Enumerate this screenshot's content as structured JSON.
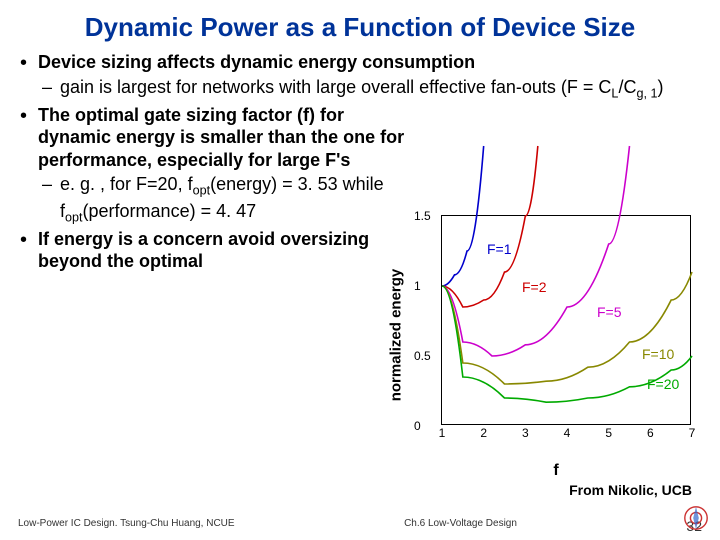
{
  "title": "Dynamic Power as a Function of Device Size",
  "bullets": {
    "b1": "Device sizing affects dynamic energy consumption",
    "b1a": "gain is largest for networks with large overall effective fan-outs (F = C",
    "b1a_sub1": "L",
    "b1a_mid": "/C",
    "b1a_sub2": "g, 1",
    "b1a_end": ")",
    "b2": "The optimal gate sizing factor (f) for dynamic energy is smaller than the one for performance, especially for large F's",
    "b2a_start": "e. g. , for F=20, f",
    "b2a_sub1": "opt",
    "b2a_mid1": "(energy) = 3. 53     while f",
    "b2a_sub2": "opt",
    "b2a_end": "(performance) = 4. 47",
    "b3": "If energy is a concern avoid oversizing beyond the optimal"
  },
  "chart": {
    "ylabel": "normalized energy",
    "xlabel": "f",
    "xlim": [
      1,
      7
    ],
    "ylim": [
      0,
      1.5
    ],
    "xticks": [
      1,
      2,
      3,
      4,
      5,
      6,
      7
    ],
    "yticks": [
      0,
      0.5,
      1,
      1.5
    ],
    "curves": [
      {
        "label": "F=1",
        "color": "#0000cc",
        "label_x": 0.18,
        "label_y": 0.12,
        "pts": [
          [
            1,
            1
          ],
          [
            1.3,
            1.08
          ],
          [
            1.6,
            1.25
          ],
          [
            2,
            2.0
          ]
        ]
      },
      {
        "label": "F=2",
        "color": "#cc0000",
        "label_x": 0.32,
        "label_y": 0.3,
        "pts": [
          [
            1,
            1
          ],
          [
            1.5,
            0.85
          ],
          [
            2,
            0.9
          ],
          [
            2.5,
            1.1
          ],
          [
            3,
            1.5
          ],
          [
            3.3,
            2.0
          ]
        ]
      },
      {
        "label": "F=5",
        "color": "#cc00cc",
        "label_x": 0.62,
        "label_y": 0.42,
        "pts": [
          [
            1,
            1
          ],
          [
            1.5,
            0.6
          ],
          [
            2.2,
            0.5
          ],
          [
            3,
            0.58
          ],
          [
            4,
            0.85
          ],
          [
            5,
            1.3
          ],
          [
            5.5,
            2.0
          ]
        ]
      },
      {
        "label": "F=10",
        "color": "#888800",
        "label_x": 0.8,
        "label_y": 0.62,
        "pts": [
          [
            1,
            1
          ],
          [
            1.5,
            0.45
          ],
          [
            2.5,
            0.3
          ],
          [
            3.5,
            0.32
          ],
          [
            4.5,
            0.42
          ],
          [
            5.5,
            0.6
          ],
          [
            6.5,
            0.9
          ],
          [
            7,
            1.1
          ]
        ]
      },
      {
        "label": "F=20",
        "color": "#00aa00",
        "label_x": 0.82,
        "label_y": 0.76,
        "pts": [
          [
            1,
            1
          ],
          [
            1.5,
            0.35
          ],
          [
            2.5,
            0.2
          ],
          [
            3.5,
            0.17
          ],
          [
            4.5,
            0.2
          ],
          [
            5.5,
            0.28
          ],
          [
            6.5,
            0.4
          ],
          [
            7,
            0.5
          ]
        ]
      }
    ]
  },
  "attribution": "From Nikolic, UCB",
  "footer": {
    "left": "Low-Power IC Design. Tsung-Chu Huang, NCUE",
    "center": "Ch.6 Low-Voltage Design",
    "page": "32"
  }
}
